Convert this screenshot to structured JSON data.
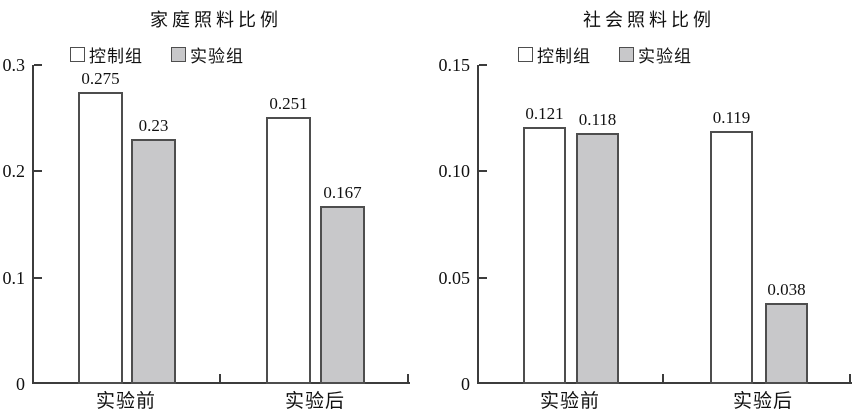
{
  "figure": {
    "background": "#ffffff"
  },
  "colors": {
    "axis": "#3c3c3c",
    "bar_border": "#4e4e4e",
    "control_fill": "#ffffff",
    "experiment_fill": "#c8c8ca",
    "text": "#111111"
  },
  "chart_data": [
    {
      "type": "bar",
      "title": "家庭照料比例",
      "categories": [
        "实验前",
        "实验后"
      ],
      "series": [
        {
          "name": "控制组",
          "values": [
            0.275,
            0.251
          ],
          "value_labels": [
            "0.275",
            "0.251"
          ],
          "fill": "#ffffff"
        },
        {
          "name": "实验组",
          "values": [
            0.23,
            0.167
          ],
          "value_labels": [
            "0.23",
            "0.167"
          ],
          "fill": "#c8c8ca"
        }
      ],
      "ylim": [
        0,
        0.3
      ],
      "yticks": [
        {
          "value": 0.3,
          "label": "0.3"
        },
        {
          "value": 0.2,
          "label": "0.2"
        },
        {
          "value": 0.1,
          "label": "0.1"
        },
        {
          "value": 0,
          "label": "0"
        }
      ],
      "legend_position": "top-left",
      "grid": false
    },
    {
      "type": "bar",
      "title": "社会照料比例",
      "categories": [
        "实验前",
        "实验后"
      ],
      "series": [
        {
          "name": "控制组",
          "values": [
            0.121,
            0.119
          ],
          "value_labels": [
            "0.121",
            "0.119"
          ],
          "fill": "#ffffff"
        },
        {
          "name": "实验组",
          "values": [
            0.118,
            0.038
          ],
          "value_labels": [
            "0.118",
            "0.038"
          ],
          "fill": "#c8c8ca"
        }
      ],
      "ylim": [
        0,
        0.15
      ],
      "yticks": [
        {
          "value": 0.15,
          "label": "0.15"
        },
        {
          "value": 0.1,
          "label": "0.10"
        },
        {
          "value": 0.05,
          "label": "0.05"
        },
        {
          "value": 0,
          "label": "0"
        }
      ],
      "legend_position": "top-left",
      "grid": false
    }
  ]
}
